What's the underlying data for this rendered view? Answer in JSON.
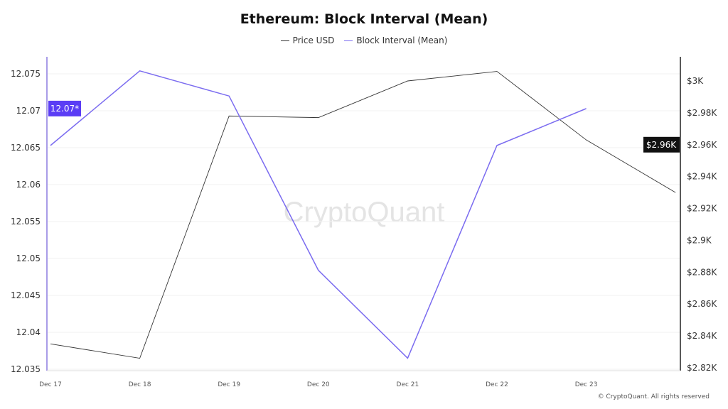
{
  "chart_data": {
    "type": "line",
    "title": "Ethereum: Block Interval (Mean)",
    "categories": [
      "Dec 17",
      "Dec 18",
      "Dec 19",
      "Dec 20",
      "Dec 21",
      "Dec 22",
      "Dec 23"
    ],
    "series": [
      {
        "name": "Price USD",
        "axis": "right",
        "color": "#333333",
        "x": [
          0,
          1,
          2,
          3,
          4,
          5,
          6,
          7
        ],
        "values": [
          2835,
          2826,
          2978,
          2977,
          3000,
          3006,
          2963,
          2930
        ]
      },
      {
        "name": "Block Interval (Mean)",
        "axis": "left",
        "color": "#7b6cf0",
        "x": [
          0,
          1,
          2,
          3,
          4,
          5,
          6
        ],
        "values": [
          12.0653,
          12.0754,
          12.072,
          12.0484,
          12.0365,
          12.0653,
          12.0703
        ]
      }
    ],
    "left_axis": {
      "ticks": [
        "12.035",
        "12.04",
        "12.045",
        "12.05",
        "12.055",
        "12.06",
        "12.065",
        "12.07",
        "12.075"
      ],
      "ylim": [
        12.035,
        12.075
      ],
      "current_label": "12.07*",
      "current_value": 12.0703,
      "color": "#5b3df5"
    },
    "right_axis": {
      "ticks": [
        "$2.82K",
        "$2.84K",
        "$2.86K",
        "$2.88K",
        "$2.9K",
        "$2.92K",
        "$2.94K",
        "$2.96K",
        "$2.98K",
        "$3K"
      ],
      "ylim": [
        2820,
        3000
      ],
      "current_label": "$2.96K",
      "current_value": 2960
    },
    "grid": true,
    "legend_position": "top-center",
    "watermark": "CryptoQuant"
  },
  "copyright": "© CryptoQuant. All rights reserved"
}
